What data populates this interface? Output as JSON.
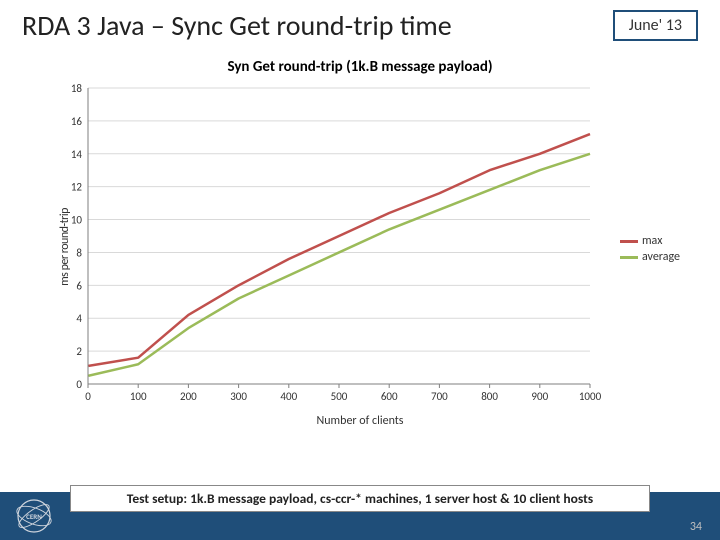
{
  "header": {
    "title": "RDA 3 Java – Sync Get round-trip time",
    "date_label": "June' 13"
  },
  "chart": {
    "type": "line",
    "title": "Syn Get round-trip (1k.B message payload)",
    "title_fontsize": 15,
    "title_fontweight": "bold",
    "x_label": "Number of clients",
    "y_label": "ms per round-trip",
    "xlim": [
      0,
      1000
    ],
    "ylim": [
      0,
      18
    ],
    "xtick_step": 100,
    "ytick_step": 2,
    "xticks": [
      0,
      100,
      200,
      300,
      400,
      500,
      600,
      700,
      800,
      900,
      1000
    ],
    "yticks": [
      0,
      2,
      4,
      6,
      8,
      10,
      12,
      14,
      16,
      18
    ],
    "background_color": "#ffffff",
    "grid_color": "#d9d9d9",
    "axis_color": "#7f7f7f",
    "label_fontsize": 12,
    "tick_fontsize": 11,
    "line_width": 2.5,
    "series": [
      {
        "name": "max",
        "color": "#c0504d",
        "x": [
          1,
          100,
          200,
          300,
          400,
          500,
          600,
          700,
          800,
          900,
          1000
        ],
        "y": [
          1.1,
          1.6,
          4.2,
          6.0,
          7.6,
          9.0,
          10.4,
          11.6,
          13.0,
          14.0,
          15.2
        ]
      },
      {
        "name": "average",
        "color": "#9bbb59",
        "x": [
          1,
          100,
          200,
          300,
          400,
          500,
          600,
          700,
          800,
          900,
          1000
        ],
        "y": [
          0.5,
          1.2,
          3.4,
          5.2,
          6.6,
          8.0,
          9.4,
          10.6,
          11.8,
          13.0,
          14.0
        ]
      }
    ],
    "legend_position": "right"
  },
  "footer": {
    "setup_text": "Test setup: 1k.B message payload, cs-ccr-* machines, 1 server host & 10 client hosts",
    "bar_color": "#1f4e79",
    "page_number": "34"
  },
  "logo": {
    "name": "cern-logo",
    "ring_color": "#d0d6de",
    "text": "CERN"
  }
}
